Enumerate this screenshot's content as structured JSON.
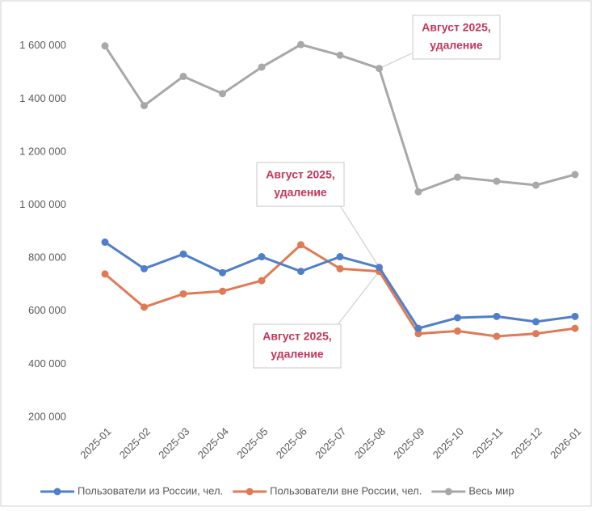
{
  "chart_data": {
    "type": "line",
    "categories": [
      "2025-01",
      "2025-02",
      "2025-03",
      "2025-04",
      "2025-05",
      "2025-06",
      "2025-07",
      "2025-08",
      "2025-09",
      "2025-10",
      "2025-11",
      "2025-12",
      "2026-01"
    ],
    "series": [
      {
        "name": "Пользователи из России, чел.",
        "color": "#4f7fc8",
        "values": [
          860000,
          760000,
          815000,
          745000,
          805000,
          750000,
          805000,
          765000,
          535000,
          575000,
          580000,
          560000,
          580000
        ]
      },
      {
        "name": "Пользователи вне России, чел.",
        "color": "#e07a55",
        "values": [
          740000,
          615000,
          665000,
          675000,
          715000,
          850000,
          760000,
          750000,
          515000,
          525000,
          505000,
          515000,
          535000
        ]
      },
      {
        "name": "Весь мир",
        "color": "#a8a8a8",
        "values": [
          1600000,
          1375000,
          1485000,
          1420000,
          1520000,
          1605000,
          1565000,
          1515000,
          1050000,
          1105000,
          1090000,
          1075000,
          1115000
        ]
      }
    ],
    "ylim": [
      200000,
      1700000
    ],
    "yticks": [
      {
        "value": 200000,
        "label": "200 000"
      },
      {
        "value": 400000,
        "label": "400 000"
      },
      {
        "value": 600000,
        "label": "600 000"
      },
      {
        "value": 800000,
        "label": "800 000"
      },
      {
        "value": 1000000,
        "label": "1 000 000"
      },
      {
        "value": 1200000,
        "label": "1 200 000"
      },
      {
        "value": 1400000,
        "label": "1 400 000"
      },
      {
        "value": 1600000,
        "label": "1 600 000"
      }
    ],
    "annotations": [
      {
        "lines": [
          "Август 2025,",
          "удаление"
        ]
      },
      {
        "lines": [
          "Август 2025,",
          "удаление"
        ]
      },
      {
        "lines": [
          "Август 2025,",
          "удаление"
        ]
      }
    ],
    "legend": "bottom"
  }
}
